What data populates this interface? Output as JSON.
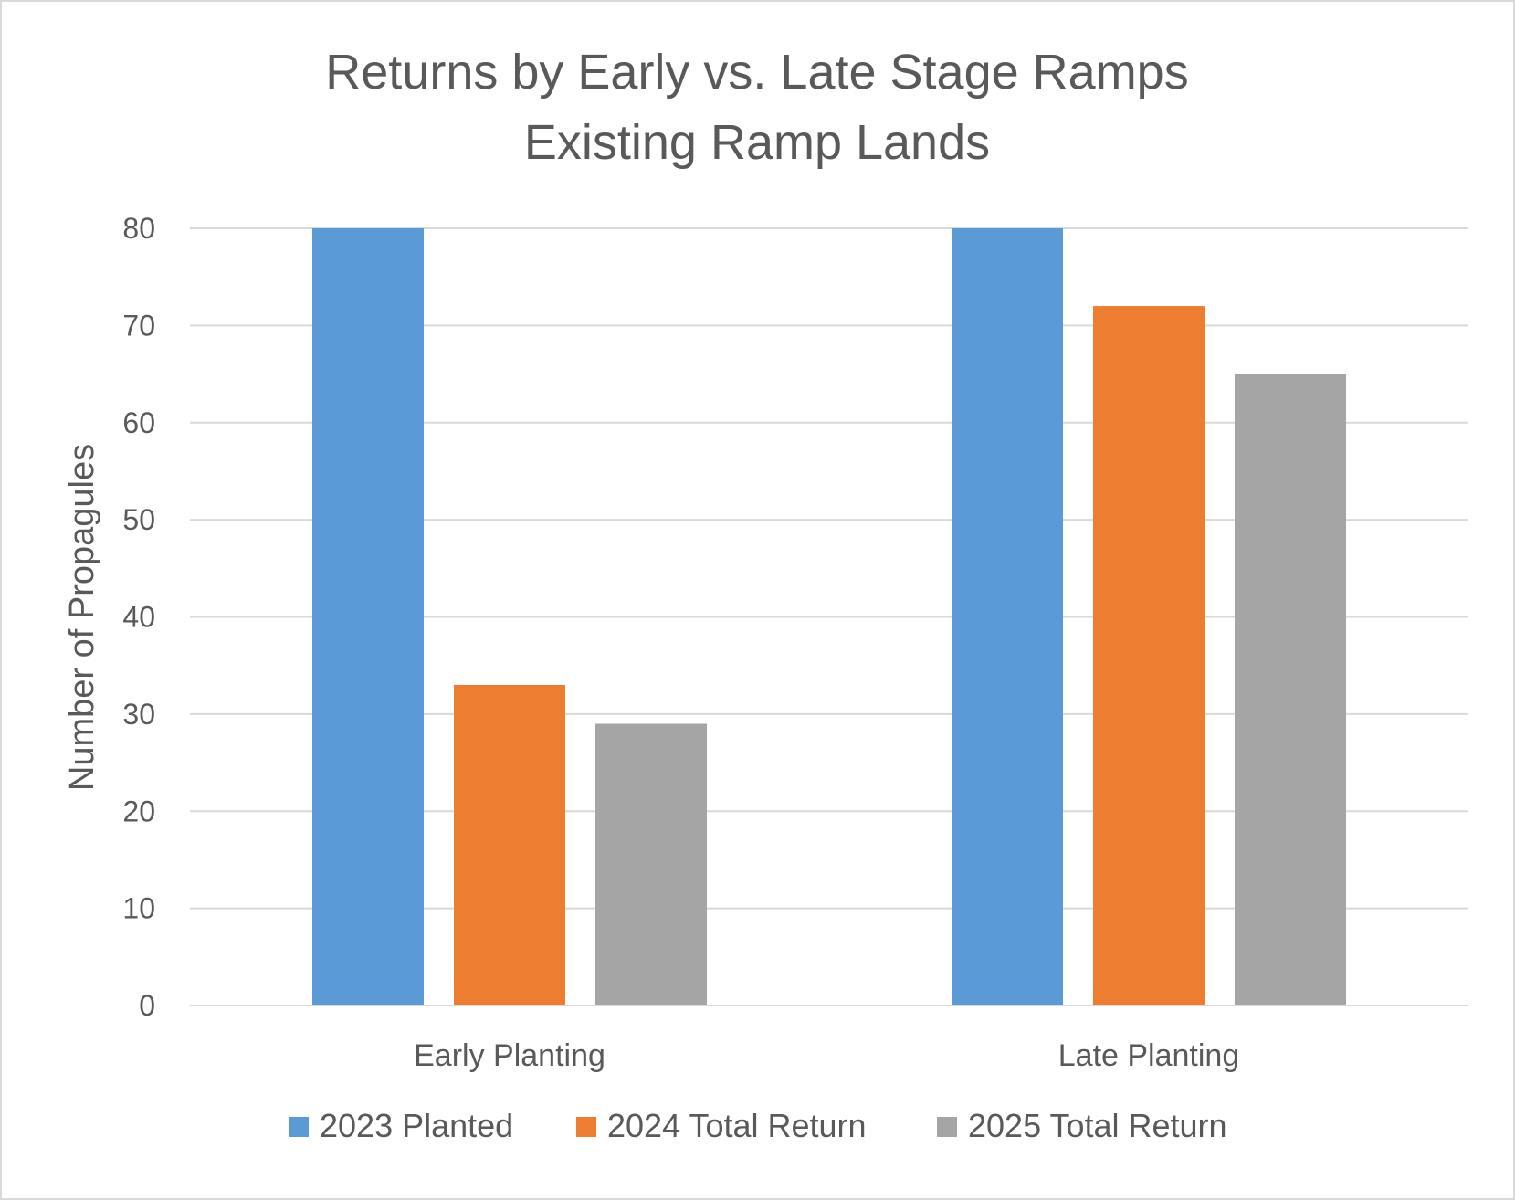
{
  "chart_data": {
    "type": "bar",
    "title_lines": [
      "Returns by Early vs. Late Stage Ramps",
      "Existing Ramp Lands"
    ],
    "xlabel": "",
    "ylabel": "Number of Propagules",
    "ylim": [
      0,
      80
    ],
    "yticks": [
      "0",
      "10",
      "20",
      "30",
      "40",
      "50",
      "60",
      "70",
      "80"
    ],
    "categories": [
      "Early Planting",
      "Late Planting"
    ],
    "series": [
      {
        "name": "2023 Planted",
        "color": "#5b9bd5",
        "values": [
          80,
          80
        ]
      },
      {
        "name": "2024 Total Return",
        "color": "#ed7d31",
        "values": [
          33,
          72
        ]
      },
      {
        "name": "2025 Total Return",
        "color": "#a5a5a5",
        "values": [
          29,
          65
        ]
      }
    ],
    "grid": true,
    "legend_position": "bottom"
  }
}
